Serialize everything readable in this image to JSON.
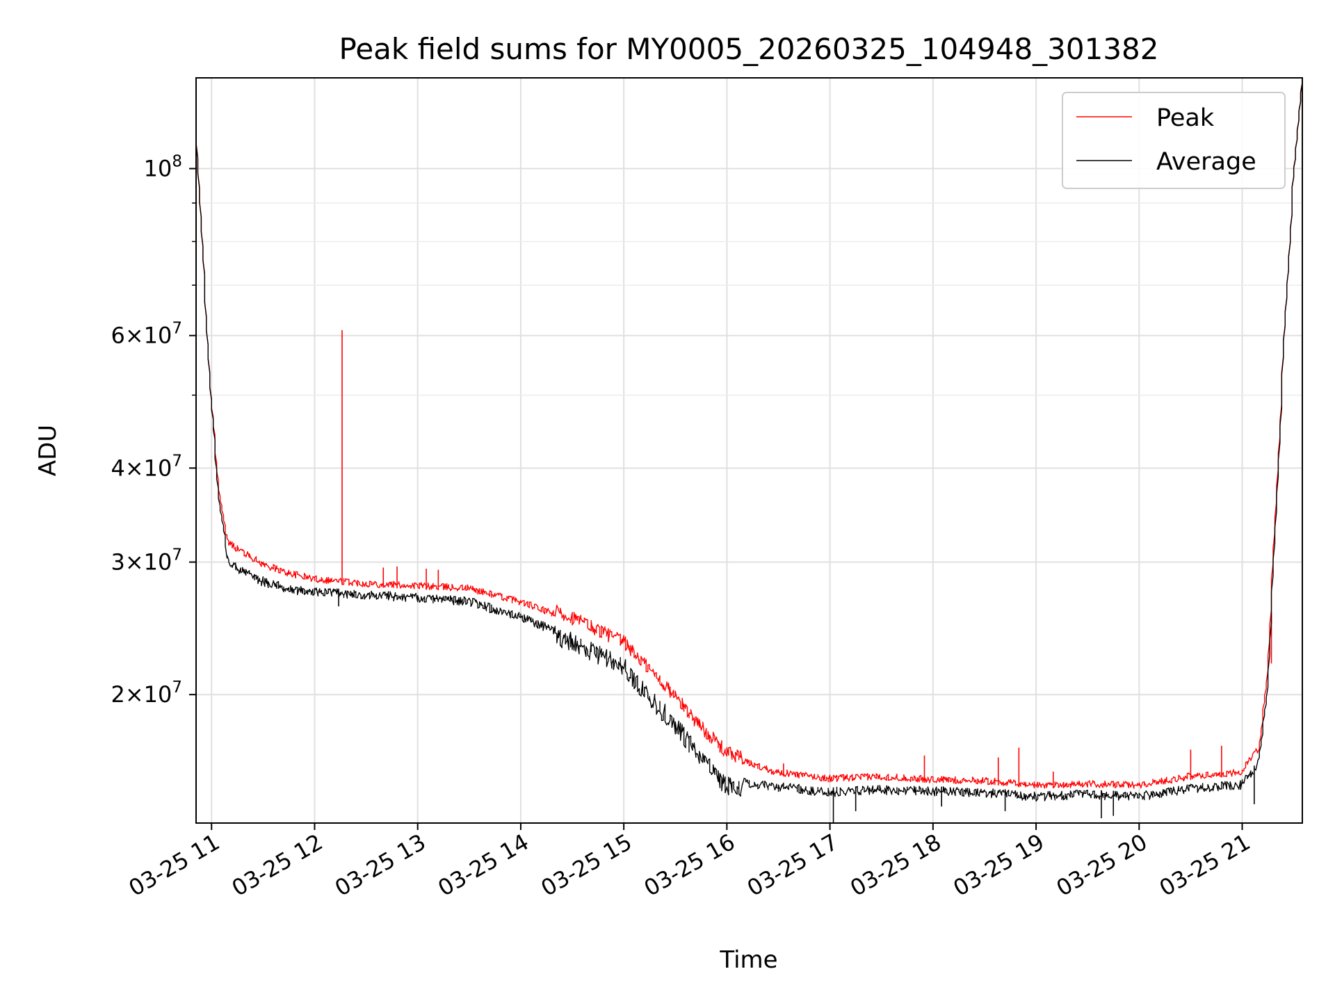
{
  "chart_data": {
    "type": "line",
    "title": "Peak field sums for MY0005_20260325_104948_301382",
    "xlabel": "Time",
    "ylabel": "ADU",
    "yscale": "log",
    "ylim": [
      13500000,
      132000000
    ],
    "xlim": [
      "2026-03-25 10:51",
      "2026-03-25 21:35"
    ],
    "grid": true,
    "legend_position": "top-right",
    "x_tick_labels": [
      "03-25 11",
      "03-25 12",
      "03-25 13",
      "03-25 14",
      "03-25 15",
      "03-25 16",
      "03-25 17",
      "03-25 18",
      "03-25 19",
      "03-25 20",
      "03-25 21"
    ],
    "y_tick_labels": [
      {
        "value": 100000000,
        "mantissa": "",
        "base": "10",
        "exp": "8"
      },
      {
        "value": 60000000,
        "mantissa": "6",
        "base": "10",
        "exp": "7"
      },
      {
        "value": 40000000,
        "mantissa": "4",
        "base": "10",
        "exp": "7"
      },
      {
        "value": 30000000,
        "mantissa": "3",
        "base": "10",
        "exp": "7"
      },
      {
        "value": 20000000,
        "mantissa": "2",
        "base": "10",
        "exp": "7"
      }
    ],
    "y_minor_ticks": [
      50000000,
      70000000,
      80000000,
      90000000
    ],
    "x": [
      "2026-03-25 10:51",
      "2026-03-25 10:55",
      "2026-03-25 11:00",
      "2026-03-25 11:05",
      "2026-03-25 11:10",
      "2026-03-25 11:20",
      "2026-03-25 11:30",
      "2026-03-25 11:45",
      "2026-03-25 12:00",
      "2026-03-25 12:30",
      "2026-03-25 13:00",
      "2026-03-25 13:30",
      "2026-03-25 14:00",
      "2026-03-25 14:30",
      "2026-03-25 15:00",
      "2026-03-25 15:15",
      "2026-03-25 15:30",
      "2026-03-25 15:45",
      "2026-03-25 16:00",
      "2026-03-25 16:30",
      "2026-03-25 17:00",
      "2026-03-25 17:30",
      "2026-03-25 18:00",
      "2026-03-25 18:30",
      "2026-03-25 19:00",
      "2026-03-25 19:30",
      "2026-03-25 20:00",
      "2026-03-25 20:30",
      "2026-03-25 21:00",
      "2026-03-25 21:10",
      "2026-03-25 21:15",
      "2026-03-25 21:20",
      "2026-03-25 21:25",
      "2026-03-25 21:30",
      "2026-03-25 21:35"
    ],
    "series": [
      {
        "name": "Peak",
        "color": "#ff0000",
        "values": [
          118000000,
          80000000,
          50000000,
          37000000,
          31500000,
          30500000,
          29500000,
          28700000,
          28200000,
          27800000,
          27600000,
          27400000,
          26300000,
          24800000,
          23000000,
          21200000,
          19500000,
          17800000,
          16400000,
          15600000,
          15300000,
          15400000,
          15250000,
          15200000,
          15000000,
          15050000,
          15000000,
          15400000,
          15600000,
          16800000,
          21000000,
          35000000,
          60000000,
          95000000,
          130000000
        ],
        "spikes": [
          {
            "x": "2026-03-25 12:16",
            "y": 61000000
          },
          {
            "x": "2026-03-25 12:40",
            "y": 29500000
          },
          {
            "x": "2026-03-25 12:48",
            "y": 29600000
          },
          {
            "x": "2026-03-25 13:05",
            "y": 29400000
          },
          {
            "x": "2026-03-25 13:12",
            "y": 29300000
          },
          {
            "x": "2026-03-25 15:56",
            "y": 17200000
          },
          {
            "x": "2026-03-25 16:33",
            "y": 16200000
          },
          {
            "x": "2026-03-25 17:55",
            "y": 16600000
          },
          {
            "x": "2026-03-25 18:38",
            "y": 16500000
          },
          {
            "x": "2026-03-25 18:50",
            "y": 17000000
          },
          {
            "x": "2026-03-25 19:10",
            "y": 15800000
          },
          {
            "x": "2026-03-25 20:30",
            "y": 16900000
          },
          {
            "x": "2026-03-25 20:48",
            "y": 17100000
          },
          {
            "x": "2026-03-25 21:17",
            "y": 22000000
          }
        ]
      },
      {
        "name": "Average",
        "color": "#000000",
        "values": [
          118000000,
          80000000,
          50000000,
          36000000,
          30500000,
          29500000,
          28700000,
          28000000,
          27800000,
          27500000,
          27300000,
          27000000,
          25700000,
          24200000,
          22500000,
          20500000,
          18800000,
          17000000,
          15600000,
          15300000,
          15050000,
          15150000,
          15100000,
          15050000,
          14850000,
          14950000,
          14850000,
          15200000,
          15400000,
          16400000,
          20000000,
          34000000,
          60000000,
          95000000,
          130000000
        ],
        "dips": [
          {
            "x": "2026-03-25 12:14",
            "y": 26200000
          },
          {
            "x": "2026-03-25 17:02",
            "y": 13500000
          },
          {
            "x": "2026-03-25 17:15",
            "y": 14000000
          },
          {
            "x": "2026-03-25 18:05",
            "y": 14200000
          },
          {
            "x": "2026-03-25 18:42",
            "y": 14000000
          },
          {
            "x": "2026-03-25 19:38",
            "y": 13700000
          },
          {
            "x": "2026-03-25 19:45",
            "y": 13800000
          },
          {
            "x": "2026-03-25 21:07",
            "y": 14300000
          }
        ]
      }
    ]
  }
}
